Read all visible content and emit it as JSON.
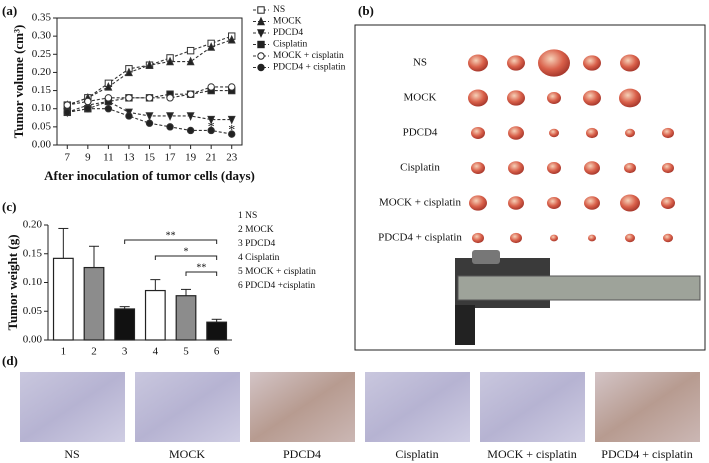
{
  "panel_labels": [
    "(a)",
    "(b)",
    "(c)",
    "(d)"
  ],
  "photo_b": {
    "rows": [
      "NS",
      "MOCK",
      "PDCD4",
      "Cisplatin",
      "MOCK + cisplatin",
      "PDCD4 + cisplatin"
    ]
  },
  "photo_d": {
    "captions": [
      "NS",
      "MOCK",
      "PDCD4",
      "Cisplatin",
      "MOCK + cisplatin",
      "PDCD4 + cisplatin"
    ]
  },
  "chart_data": [
    {
      "type": "line",
      "y_label": "Tumor volume (cm³)",
      "x_label": "After inoculation of tumor cells (days)",
      "x": [
        7,
        9,
        11,
        13,
        15,
        17,
        19,
        21,
        23
      ],
      "xlim": [
        6,
        24
      ],
      "xticks": [
        7,
        9,
        11,
        13,
        15,
        17,
        19,
        21,
        23
      ],
      "ylim": [
        0,
        0.35
      ],
      "yticks": [
        {
          "value": 0,
          "label": "0.00"
        },
        0.05,
        {
          "value": 0.1,
          "label": "0.10"
        },
        0.15,
        {
          "value": 0.2,
          "label": "0.20"
        },
        0.25,
        {
          "value": 0.3,
          "label": "0.30"
        },
        0.35
      ],
      "series": [
        {
          "name": "NS",
          "color": "#333",
          "marker": "square-open",
          "values": [
            0.11,
            0.13,
            0.17,
            0.21,
            0.22,
            0.24,
            0.26,
            0.28,
            0.3
          ]
        },
        {
          "name": "MOCK",
          "color": "#333",
          "marker": "triangle",
          "values": [
            0.11,
            0.13,
            0.16,
            0.2,
            0.22,
            0.23,
            0.23,
            0.27,
            0.29
          ]
        },
        {
          "name": "PDCD4",
          "color": "#333",
          "marker": "triangle-down",
          "values": [
            0.09,
            0.11,
            0.12,
            0.09,
            0.08,
            0.08,
            0.08,
            0.07,
            0.07
          ]
        },
        {
          "name": "Cisplatin",
          "color": "#333",
          "marker": "square",
          "values": [
            0.09,
            0.1,
            0.12,
            0.13,
            0.13,
            0.14,
            0.14,
            0.15,
            0.15
          ]
        },
        {
          "name": "MOCK + cisplatin",
          "color": "#333",
          "marker": "circle-open",
          "values": [
            0.11,
            0.12,
            0.13,
            0.13,
            0.13,
            0.13,
            0.14,
            0.16,
            0.16
          ]
        },
        {
          "name": "PDCD4 + cisplatin",
          "color": "#333",
          "marker": "circle",
          "values": [
            0.09,
            0.1,
            0.1,
            0.08,
            0.06,
            0.05,
            0.04,
            0.04,
            0.03
          ]
        }
      ],
      "annotations": [
        "*",
        "*"
      ]
    },
    {
      "type": "bar",
      "y_label": "Tumor weight (g)",
      "categories": [
        "1",
        "2",
        "3",
        "4",
        "5",
        "6"
      ],
      "values": [
        0.142,
        0.126,
        0.054,
        0.086,
        0.077,
        0.031
      ],
      "errors": [
        0.052,
        0.037,
        0.004,
        0.019,
        0.011,
        0.005
      ],
      "colors": [
        "#ffffff",
        "#8c8c8c",
        "#111111",
        "#ffffff",
        "#8c8c8c",
        "#111111"
      ],
      "ylim": [
        0,
        0.2
      ],
      "yticks": [
        {
          "value": 0,
          "label": "0.00"
        },
        0.05,
        {
          "value": 0.1,
          "label": "0.10"
        },
        0.15,
        {
          "value": 0.2,
          "label": "0.20"
        }
      ],
      "legend_entries": [
        "1  NS",
        "2  MOCK",
        "3  PDCD4",
        "4  Cisplatin",
        "5  MOCK + cisplatin",
        "6  PDCD4 +cisplatin"
      ],
      "significance": [
        "**",
        "*",
        "**"
      ]
    }
  ]
}
